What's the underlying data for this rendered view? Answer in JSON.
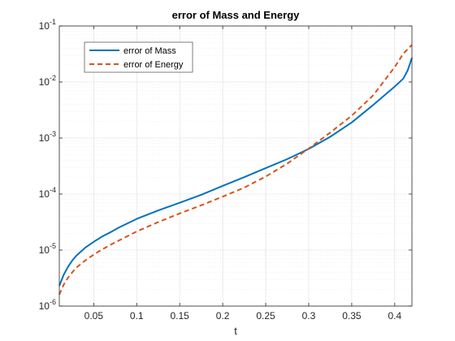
{
  "chart_data": {
    "type": "line",
    "title": "error of Mass and Energy",
    "xlabel": "t",
    "ylabel": "",
    "xlim": [
      0.01,
      0.42
    ],
    "ylim": [
      1e-06,
      0.1
    ],
    "yscale": "log",
    "grid": true,
    "minor_grid": true,
    "legend_position": "top-left",
    "x_ticks": [
      {
        "value": 0.05,
        "label": "0.05"
      },
      {
        "value": 0.1,
        "label": "0.1"
      },
      {
        "value": 0.15,
        "label": "0.15"
      },
      {
        "value": 0.2,
        "label": "0.2"
      },
      {
        "value": 0.25,
        "label": "0.25"
      },
      {
        "value": 0.3,
        "label": "0.3"
      },
      {
        "value": 0.35,
        "label": "0.35"
      },
      {
        "value": 0.4,
        "label": "0.4"
      }
    ],
    "y_ticks": [
      {
        "value": 1e-06,
        "base": "10",
        "exp": "-6"
      },
      {
        "value": 1e-05,
        "base": "10",
        "exp": "-5"
      },
      {
        "value": 0.0001,
        "base": "10",
        "exp": "-4"
      },
      {
        "value": 0.001,
        "base": "10",
        "exp": "-3"
      },
      {
        "value": 0.01,
        "base": "10",
        "exp": "-2"
      },
      {
        "value": 0.1,
        "base": "10",
        "exp": "-1"
      }
    ],
    "series": [
      {
        "name": "error of Mass",
        "color": "#0072BD",
        "style": "solid",
        "x": [
          0.01,
          0.015,
          0.02,
          0.025,
          0.03,
          0.04,
          0.05,
          0.06,
          0.07,
          0.08,
          0.1,
          0.125,
          0.15,
          0.175,
          0.2,
          0.225,
          0.25,
          0.275,
          0.3,
          0.325,
          0.35,
          0.375,
          0.4,
          0.41,
          0.415,
          0.42
        ],
        "y": [
          2.3e-06,
          3.6e-06,
          5e-06,
          6.5e-06,
          8e-06,
          1.1e-05,
          1.4e-05,
          1.75e-05,
          2.1e-05,
          2.55e-05,
          3.6e-05,
          5.1e-05,
          7e-05,
          9.7e-05,
          0.00014,
          0.0002,
          0.00029,
          0.00042,
          0.00064,
          0.00105,
          0.0019,
          0.0039,
          0.0083,
          0.0115,
          0.016,
          0.027
        ]
      },
      {
        "name": "error of Energy",
        "color": "#D95319",
        "style": "dashed",
        "x": [
          0.01,
          0.015,
          0.02,
          0.025,
          0.03,
          0.04,
          0.05,
          0.06,
          0.07,
          0.08,
          0.1,
          0.125,
          0.15,
          0.175,
          0.2,
          0.225,
          0.25,
          0.275,
          0.3,
          0.325,
          0.35,
          0.375,
          0.4,
          0.41,
          0.42
        ],
        "y": [
          1.6e-06,
          2.4e-06,
          3.2e-06,
          4e-06,
          4.9e-06,
          6.5e-06,
          8.3e-06,
          1.03e-05,
          1.25e-05,
          1.5e-05,
          2.15e-05,
          3.15e-05,
          4.5e-05,
          6.3e-05,
          9e-05,
          0.00013,
          0.000205,
          0.00035,
          0.00065,
          0.00125,
          0.0025,
          0.0058,
          0.0185,
          0.032,
          0.046
        ]
      }
    ]
  }
}
